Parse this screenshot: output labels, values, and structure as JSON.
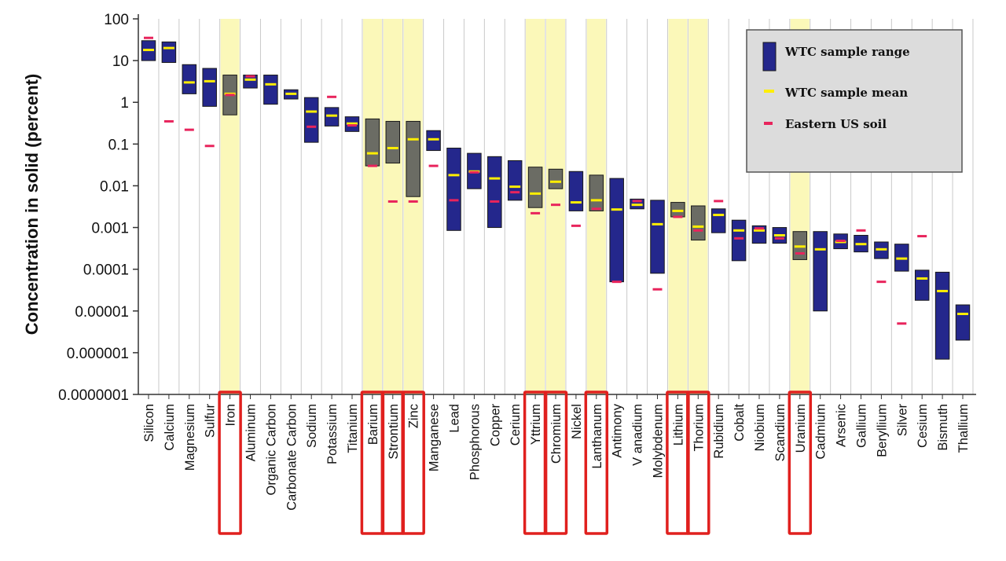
{
  "chart_data": {
    "type": "range-bar",
    "ylabel": "Concentration in solid (percent)",
    "yscale": "log",
    "ylim": [
      1e-07,
      100
    ],
    "yticks": [
      "100",
      "10",
      "1",
      "0.1",
      "0.01",
      "0.001",
      "0.0001",
      "0.00001",
      "0.000001",
      "0.0000001"
    ],
    "grid": "vertical",
    "legend_placement": "top-right",
    "legend": [
      {
        "key": "range",
        "label": "WTC sample range"
      },
      {
        "key": "mean",
        "label": "WTC sample mean"
      },
      {
        "key": "soil",
        "label": "Eastern US soil"
      }
    ],
    "colors": {
      "range": "#24278c",
      "range_highlighted": "#6b6c64",
      "mean": "#ffee00",
      "soil": "#e8245c",
      "highlight_band": "#fbf8b9",
      "highlight_box": "#e0201e",
      "legend_bg": "#dcdcdc"
    },
    "elements": [
      {
        "name": "Silicon",
        "min": 10,
        "max": 30,
        "mean": 18,
        "soil": 35,
        "highlight": false
      },
      {
        "name": "Calcium",
        "min": 9,
        "max": 28,
        "mean": 20,
        "soil": 0.35,
        "highlight": false
      },
      {
        "name": "Magnesium",
        "min": 1.6,
        "max": 8,
        "mean": 3,
        "soil": 0.22,
        "highlight": false
      },
      {
        "name": "Sulfur",
        "min": 0.8,
        "max": 6.5,
        "mean": 3.2,
        "soil": 0.09,
        "highlight": false
      },
      {
        "name": "Iron",
        "min": 0.5,
        "max": 4.5,
        "mean": 1.6,
        "soil": 1.5,
        "highlight": true
      },
      {
        "name": "Aluminum",
        "min": 2.2,
        "max": 4.5,
        "mean": 3.5,
        "soil": 4.2,
        "highlight": false
      },
      {
        "name": "Organic Carbon",
        "min": 0.9,
        "max": 4.5,
        "mean": 2.7,
        "soil": null,
        "highlight": false
      },
      {
        "name": "Carbonate Carbon",
        "min": 1.2,
        "max": 2.0,
        "mean": 1.6,
        "soil": null,
        "highlight": false
      },
      {
        "name": "Sodium",
        "min": 0.11,
        "max": 1.3,
        "mean": 0.6,
        "soil": 0.26,
        "highlight": false
      },
      {
        "name": "Potassium",
        "min": 0.27,
        "max": 0.75,
        "mean": 0.48,
        "soil": 1.35,
        "highlight": false
      },
      {
        "name": "Titanium",
        "min": 0.2,
        "max": 0.45,
        "mean": 0.31,
        "soil": 0.28,
        "highlight": false
      },
      {
        "name": "Barium",
        "min": 0.03,
        "max": 0.4,
        "mean": 0.06,
        "soil": 0.03,
        "highlight": true
      },
      {
        "name": "Strontium",
        "min": 0.035,
        "max": 0.35,
        "mean": 0.08,
        "soil": 0.0042,
        "highlight": true
      },
      {
        "name": "Zinc",
        "min": 0.0055,
        "max": 0.35,
        "mean": 0.13,
        "soil": 0.0042,
        "highlight": true
      },
      {
        "name": "Manganese",
        "min": 0.07,
        "max": 0.21,
        "mean": 0.13,
        "soil": 0.03,
        "highlight": false
      },
      {
        "name": "Lead",
        "min": 0.00085,
        "max": 0.08,
        "mean": 0.018,
        "soil": 0.0045,
        "highlight": false
      },
      {
        "name": "Phosphorous",
        "min": 0.0085,
        "max": 0.06,
        "mean": 0.022,
        "soil": 0.021,
        "highlight": false
      },
      {
        "name": "Copper",
        "min": 0.001,
        "max": 0.05,
        "mean": 0.015,
        "soil": 0.0042,
        "highlight": false
      },
      {
        "name": "Cerium",
        "min": 0.0045,
        "max": 0.04,
        "mean": 0.0095,
        "soil": 0.007,
        "highlight": false
      },
      {
        "name": "Yttrium",
        "min": 0.003,
        "max": 0.028,
        "mean": 0.0065,
        "soil": 0.0022,
        "highlight": true
      },
      {
        "name": "Chromium",
        "min": 0.0085,
        "max": 0.025,
        "mean": 0.0125,
        "soil": 0.0035,
        "highlight": true
      },
      {
        "name": "Nickel",
        "min": 0.0025,
        "max": 0.022,
        "mean": 0.004,
        "soil": 0.0011,
        "highlight": false
      },
      {
        "name": "Lanthanum",
        "min": 0.0025,
        "max": 0.018,
        "mean": 0.0045,
        "soil": 0.0028,
        "highlight": true
      },
      {
        "name": "Antimony",
        "min": 5e-05,
        "max": 0.015,
        "mean": 0.0027,
        "soil": 5e-05,
        "highlight": false
      },
      {
        "name": "V     anadium",
        "min": 0.0028,
        "max": 0.0048,
        "mean": 0.0035,
        "soil": 0.0043,
        "highlight": false
      },
      {
        "name": "Molybdenum",
        "min": 8e-05,
        "max": 0.0045,
        "mean": 0.0012,
        "soil": 3.3e-05,
        "highlight": false
      },
      {
        "name": "Lithium",
        "min": 0.0018,
        "max": 0.004,
        "mean": 0.0025,
        "soil": 0.0018,
        "highlight": true
      },
      {
        "name": "Thorium",
        "min": 0.0005,
        "max": 0.0033,
        "mean": 0.00105,
        "soil": 0.00085,
        "highlight": true
      },
      {
        "name": "Rubidium",
        "min": 0.00075,
        "max": 0.0028,
        "mean": 0.002,
        "soil": 0.0043,
        "highlight": false
      },
      {
        "name": "Cobalt",
        "min": 0.00016,
        "max": 0.0015,
        "mean": 0.00085,
        "soil": 0.00055,
        "highlight": false
      },
      {
        "name": "Niobium",
        "min": 0.00042,
        "max": 0.0011,
        "mean": 0.00085,
        "soil": 0.00095,
        "highlight": false
      },
      {
        "name": "Scandium",
        "min": 0.00042,
        "max": 0.001,
        "mean": 0.00065,
        "soil": 0.00055,
        "highlight": false
      },
      {
        "name": "Uranium",
        "min": 0.00017,
        "max": 0.0008,
        "mean": 0.00035,
        "soil": 0.00024,
        "highlight": true
      },
      {
        "name": "Cadmium",
        "min": 1e-05,
        "max": 0.0008,
        "mean": 0.0003,
        "soil": null,
        "highlight": false
      },
      {
        "name": "Arsenic",
        "min": 0.00031,
        "max": 0.0007,
        "mean": 0.00045,
        "soil": 0.00048,
        "highlight": false
      },
      {
        "name": "Gallium",
        "min": 0.00026,
        "max": 0.00065,
        "mean": 0.0004,
        "soil": 0.00085,
        "highlight": false
      },
      {
        "name": "Beryllium",
        "min": 0.00018,
        "max": 0.00045,
        "mean": 0.0003,
        "soil": 5e-05,
        "highlight": false
      },
      {
        "name": "Silver",
        "min": 9e-05,
        "max": 0.0004,
        "mean": 0.00018,
        "soil": 5e-06,
        "highlight": false
      },
      {
        "name": "Cesium",
        "min": 1.8e-05,
        "max": 9.5e-05,
        "mean": 6e-05,
        "soil": 0.00062,
        "highlight": false
      },
      {
        "name": "Bismuth",
        "min": 7e-07,
        "max": 8.5e-05,
        "mean": 3e-05,
        "soil": null,
        "highlight": false
      },
      {
        "name": "Thallium",
        "min": 2e-06,
        "max": 1.4e-05,
        "mean": 8.5e-06,
        "soil": null,
        "highlight": false
      }
    ]
  }
}
